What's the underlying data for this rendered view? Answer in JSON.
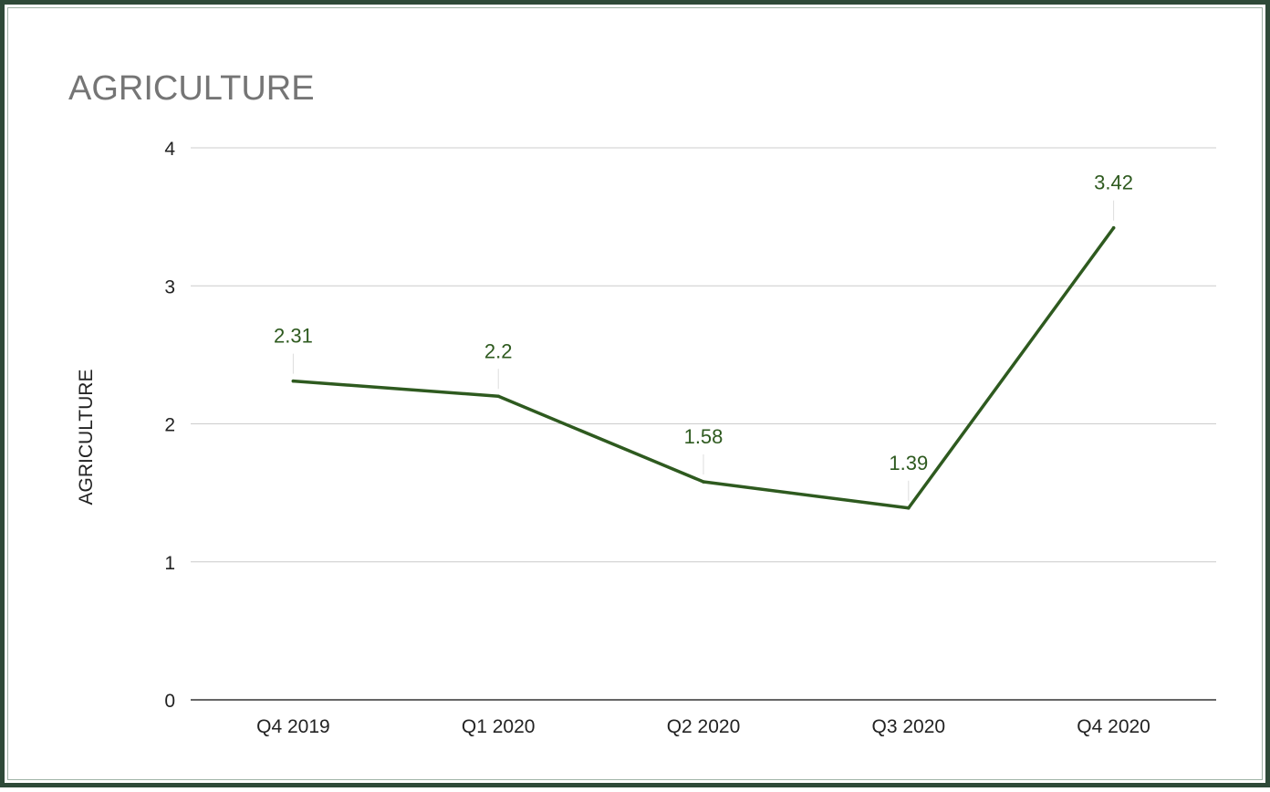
{
  "chart_data": {
    "type": "line",
    "title": "AGRICULTURE",
    "xlabel": "",
    "ylabel": "AGRICULTURE",
    "categories": [
      "Q4 2019",
      "Q1 2020",
      "Q2 2020",
      "Q3 2020",
      "Q4 2020"
    ],
    "values": [
      2.31,
      2.2,
      1.58,
      1.39,
      3.42
    ],
    "data_labels": [
      "2.31",
      "2.2",
      "1.58",
      "1.39",
      "3.42"
    ],
    "ylim": [
      0,
      4
    ],
    "yticks": [
      "0",
      "1",
      "2",
      "3",
      "4"
    ],
    "grid": true,
    "legend": "none",
    "line_color": "#2e5a1f",
    "label_color": "#2e5a1f",
    "frame_color": "#2e4a38"
  }
}
